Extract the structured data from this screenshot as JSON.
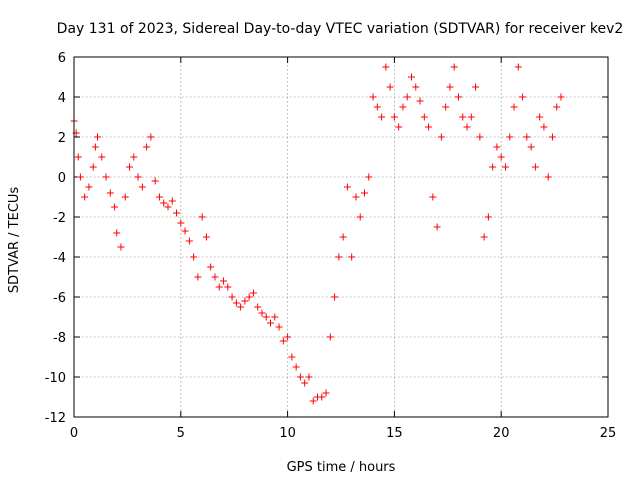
{
  "chart_data": {
    "type": "scatter",
    "title": "Day 131 of 2023, Sidereal Day-to-day VTEC variation (SDTVAR) for receiver kev2",
    "xlabel": "GPS time / hours",
    "ylabel": "SDTVAR / TECUs",
    "xlim": [
      0,
      25
    ],
    "ylim": [
      -12,
      6
    ],
    "x_ticks": [
      0,
      5,
      10,
      15,
      20,
      25
    ],
    "y_ticks": [
      -12,
      -10,
      -8,
      -6,
      -4,
      -2,
      0,
      2,
      4,
      6
    ],
    "x_tick_labels": [
      "0",
      "5",
      "10",
      "15",
      "20",
      "25"
    ],
    "y_tick_labels": [
      "-12",
      "-10",
      "-8",
      "-6",
      "-4",
      "-2",
      "0",
      "2",
      "4",
      "6"
    ],
    "grid": true,
    "marker": "+",
    "series": [
      {
        "name": "SDTVAR",
        "color": "#ff0000",
        "x": [
          0.0,
          0.1,
          0.2,
          0.3,
          0.5,
          0.7,
          0.9,
          1.0,
          1.1,
          1.3,
          1.5,
          1.7,
          1.9,
          2.0,
          2.2,
          2.4,
          2.6,
          2.8,
          3.0,
          3.2,
          3.4,
          3.6,
          3.8,
          4.0,
          4.2,
          4.4,
          4.6,
          4.8,
          5.0,
          5.2,
          5.4,
          5.6,
          5.8,
          6.0,
          6.2,
          6.4,
          6.6,
          6.8,
          7.0,
          7.2,
          7.4,
          7.6,
          7.8,
          8.0,
          8.2,
          8.4,
          8.6,
          8.8,
          9.0,
          9.2,
          9.4,
          9.6,
          9.8,
          10.0,
          10.2,
          10.4,
          10.6,
          10.8,
          11.0,
          11.2,
          11.4,
          11.6,
          11.8,
          12.0,
          12.2,
          12.4,
          12.6,
          12.8,
          13.0,
          13.2,
          13.4,
          13.6,
          13.8,
          14.0,
          14.2,
          14.4,
          14.6,
          14.8,
          15.0,
          15.2,
          15.4,
          15.6,
          15.8,
          16.0,
          16.2,
          16.4,
          16.6,
          16.8,
          17.0,
          17.2,
          17.4,
          17.6,
          17.8,
          18.0,
          18.2,
          18.4,
          18.6,
          18.8,
          19.0,
          19.2,
          19.4,
          19.6,
          19.8,
          20.0,
          20.2,
          20.4,
          20.6,
          20.8,
          21.0,
          21.2,
          21.4,
          21.6,
          21.8,
          22.0,
          22.2,
          22.4,
          22.6,
          22.8
        ],
        "y": [
          2.8,
          2.2,
          1.0,
          0.0,
          -1.0,
          -0.5,
          0.5,
          1.5,
          2.0,
          1.0,
          0.0,
          -0.8,
          -1.5,
          -2.8,
          -3.5,
          -1.0,
          0.5,
          1.0,
          0.0,
          -0.5,
          1.5,
          2.0,
          -0.2,
          -1.0,
          -1.3,
          -1.5,
          -1.2,
          -1.8,
          -2.3,
          -2.7,
          -3.2,
          -4.0,
          -5.0,
          -2.0,
          -3.0,
          -4.5,
          -5.0,
          -5.5,
          -5.2,
          -5.5,
          -6.0,
          -6.3,
          -6.5,
          -6.2,
          -6.0,
          -5.8,
          -6.5,
          -6.8,
          -7.0,
          -7.3,
          -7.0,
          -7.5,
          -8.2,
          -8.0,
          -9.0,
          -9.5,
          -10.0,
          -10.3,
          -10.0,
          -11.2,
          -11.0,
          -11.0,
          -10.8,
          -8.0,
          -6.0,
          -4.0,
          -3.0,
          -0.5,
          -4.0,
          -1.0,
          -2.0,
          -0.8,
          0.0,
          4.0,
          3.5,
          3.0,
          5.5,
          4.5,
          3.0,
          2.5,
          3.5,
          4.0,
          5.0,
          4.5,
          3.8,
          3.0,
          2.5,
          -1.0,
          -2.5,
          2.0,
          3.5,
          4.5,
          5.5,
          4.0,
          3.0,
          2.5,
          3.0,
          4.5,
          2.0,
          -3.0,
          -2.0,
          0.5,
          1.5,
          1.0,
          0.5,
          2.0,
          3.5,
          5.5,
          4.0,
          2.0,
          1.5,
          0.5,
          3.0,
          2.5,
          0.0,
          2.0,
          3.5,
          4.0
        ]
      }
    ]
  }
}
